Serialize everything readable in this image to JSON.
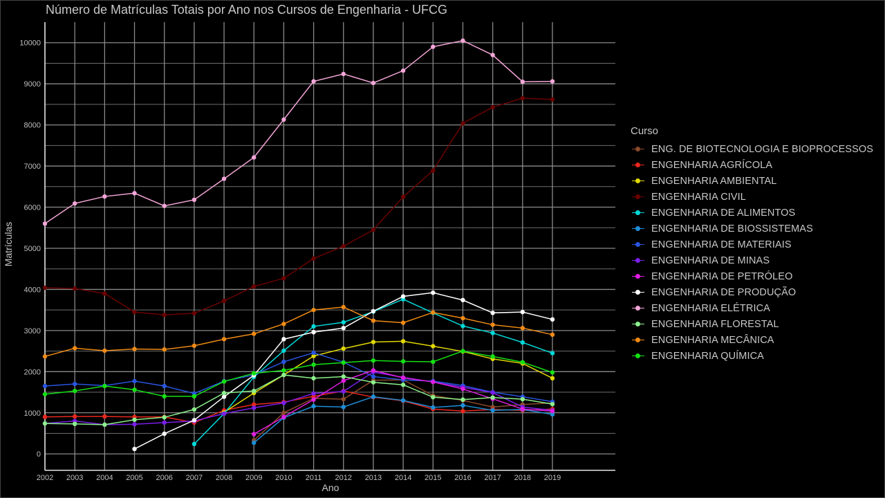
{
  "chart_data": {
    "type": "line",
    "title": "Número de Matrículas Totais por Ano nos Cursos de Engenharia - UFCG",
    "xlabel": "Ano",
    "ylabel": "Matrículas",
    "legend_title": "Curso",
    "legend_position": "right",
    "grid": true,
    "background": "#000000",
    "grid_color": "#8a8a8a",
    "x": [
      2002,
      2003,
      2004,
      2005,
      2006,
      2007,
      2008,
      2009,
      2010,
      2011,
      2012,
      2013,
      2014,
      2015,
      2016,
      2017,
      2018,
      2019
    ],
    "xlim": [
      2002,
      2019
    ],
    "ylim": [
      -400,
      10500
    ],
    "yticks": [
      0,
      1000,
      2000,
      3000,
      4000,
      5000,
      6000,
      7000,
      8000,
      9000,
      10000
    ],
    "series": [
      {
        "name": "ENG. DE BIOTECNOLOGIA E BIOPROCESSOS",
        "color": "#8b4a2b",
        "values": [
          null,
          null,
          null,
          null,
          null,
          null,
          null,
          330,
          1000,
          1350,
          1330,
          1790,
          1800,
          1420,
          1300,
          1140,
          1200,
          1240
        ]
      },
      {
        "name": "ENGENHARIA AGRÍCOLA",
        "color": "#e8281e",
        "values": [
          900,
          910,
          910,
          900,
          900,
          760,
          1060,
          1200,
          1260,
          1400,
          1530,
          1380,
          1290,
          1090,
          1040,
          1080,
          1060,
          1090
        ]
      },
      {
        "name": "ENGENHARIA AMBIENTAL",
        "color": "#e0d800",
        "values": [
          null,
          null,
          null,
          null,
          null,
          null,
          1010,
          1480,
          1920,
          2380,
          2560,
          2720,
          2740,
          2620,
          2490,
          2310,
          2200,
          1840
        ]
      },
      {
        "name": "ENGENHARIA CIVIL",
        "color": "#6b0000",
        "values": [
          4040,
          4020,
          3900,
          3450,
          3380,
          3420,
          3720,
          4070,
          4270,
          4750,
          5050,
          5450,
          6250,
          6890,
          8040,
          8430,
          8650,
          8620
        ]
      },
      {
        "name": "ENGENHARIA DE ALIMENTOS",
        "color": "#00d8d8",
        "values": [
          null,
          null,
          null,
          null,
          null,
          240,
          980,
          1870,
          2510,
          3100,
          3200,
          3460,
          3760,
          3430,
          3110,
          2940,
          2710,
          2450
        ]
      },
      {
        "name": "ENGENHARIA DE BIOSSISTEMAS",
        "color": "#1e8fd8",
        "values": [
          null,
          null,
          null,
          null,
          null,
          null,
          null,
          270,
          880,
          1160,
          1140,
          1390,
          1300,
          1130,
          1180,
          1060,
          1080,
          960
        ]
      },
      {
        "name": "ENGENHARIA DE MATERIAIS",
        "color": "#2855e0",
        "values": [
          1650,
          1700,
          1660,
          1770,
          1650,
          1470,
          1770,
          1920,
          2240,
          2460,
          2230,
          1880,
          1800,
          1770,
          1660,
          1500,
          1390,
          1270
        ]
      },
      {
        "name": "ENGENHARIA DE MINAS",
        "color": "#7a1ee8",
        "values": [
          740,
          800,
          710,
          720,
          760,
          800,
          980,
          1120,
          1240,
          1470,
          1520,
          1990,
          1860,
          1750,
          1620,
          1490,
          1140,
          1060
        ]
      },
      {
        "name": "ENGENHARIA DE PETRÓLEO",
        "color": "#e01ee0",
        "values": [
          null,
          null,
          null,
          null,
          null,
          null,
          null,
          480,
          900,
          1320,
          1780,
          2030,
          1850,
          1750,
          1580,
          1340,
          1090,
          1040
        ]
      },
      {
        "name": "ENGENHARIA DE PRODUÇÃO",
        "color": "#ffffff",
        "values": [
          null,
          null,
          null,
          120,
          490,
          820,
          1390,
          1910,
          2790,
          2960,
          3060,
          3470,
          3830,
          3920,
          3740,
          3430,
          3450,
          3270
        ]
      },
      {
        "name": "ENGENHARIA ELÉTRICA",
        "color": "#f4a6d8",
        "values": [
          5600,
          6090,
          6260,
          6340,
          6030,
          6180,
          6690,
          7210,
          8130,
          9060,
          9240,
          9020,
          9320,
          9900,
          10050,
          9700,
          9050,
          9060
        ]
      },
      {
        "name": "ENGENHARIA FLORESTAL",
        "color": "#8cf08c",
        "values": [
          740,
          730,
          710,
          830,
          890,
          1080,
          1480,
          1530,
          1920,
          1840,
          1880,
          1740,
          1680,
          1380,
          1320,
          1370,
          1330,
          1210
        ]
      },
      {
        "name": "ENGENHARIA MECÂNICA",
        "color": "#f08a14",
        "values": [
          2370,
          2570,
          2510,
          2550,
          2540,
          2630,
          2790,
          2920,
          3160,
          3500,
          3570,
          3240,
          3190,
          3440,
          3300,
          3140,
          3060,
          2900
        ]
      },
      {
        "name": "ENGENHARIA QUÍMICA",
        "color": "#14e014",
        "values": [
          1450,
          1530,
          1650,
          1560,
          1400,
          1400,
          1760,
          1960,
          2030,
          2170,
          2220,
          2270,
          2250,
          2240,
          2500,
          2370,
          2230,
          1980
        ]
      }
    ]
  }
}
